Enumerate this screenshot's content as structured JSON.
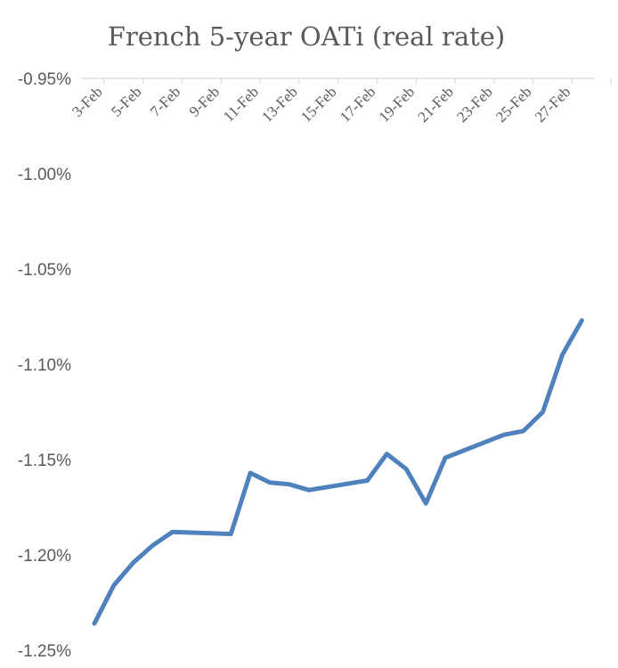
{
  "chart_data": {
    "type": "line",
    "title": "French 5-year OATi (real rate)",
    "xlabel": "",
    "ylabel": "",
    "ylim": [
      -1.25,
      -0.95
    ],
    "y_ticks": [
      "-0.95%",
      "-1.00%",
      "-1.05%",
      "-1.10%",
      "-1.15%",
      "-1.20%",
      "-1.25%"
    ],
    "x_tick_labels": [
      "3-Feb",
      "5-Feb",
      "7-Feb",
      "9-Feb",
      "11-Feb",
      "13-Feb",
      "15-Feb",
      "17-Feb",
      "19-Feb",
      "21-Feb",
      "23-Feb",
      "25-Feb",
      "27-Feb"
    ],
    "x_axis_position": "top",
    "grid": false,
    "legend": "none",
    "line_color": "#4f81bd",
    "series": [
      {
        "x": [
          "3-Feb",
          "4-Feb",
          "5-Feb",
          "6-Feb",
          "7-Feb",
          "10-Feb",
          "11-Feb",
          "12-Feb",
          "13-Feb",
          "14-Feb",
          "17-Feb",
          "18-Feb",
          "19-Feb",
          "20-Feb",
          "21-Feb",
          "24-Feb",
          "25-Feb",
          "26-Feb",
          "27-Feb",
          "28-Feb"
        ],
        "values": [
          -1.236,
          -1.216,
          -1.204,
          -1.195,
          -1.188,
          -1.189,
          -1.157,
          -1.162,
          -1.163,
          -1.166,
          -1.161,
          -1.147,
          -1.155,
          -1.173,
          -1.149,
          -1.137,
          -1.135,
          -1.125,
          -1.095,
          -1.077
        ]
      }
    ]
  }
}
